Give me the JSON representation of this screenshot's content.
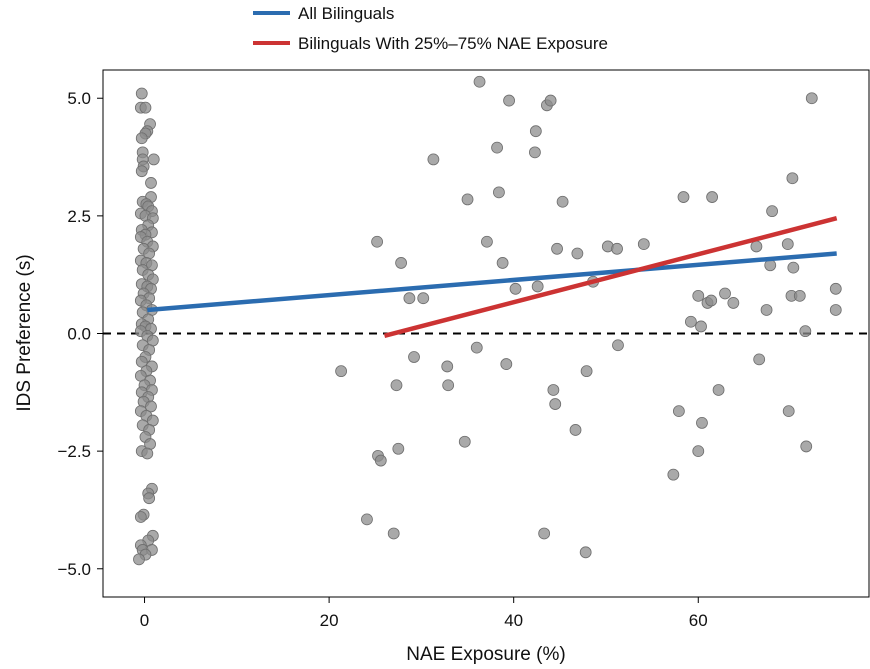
{
  "chart_data": {
    "type": "scatter",
    "xlabel": "NAE Exposure (%)",
    "ylabel": "IDS Preference (s)",
    "xlim": [
      -4.5,
      78.5
    ],
    "ylim": [
      -5.6,
      5.6
    ],
    "xticks": [
      0,
      20,
      40,
      60
    ],
    "xtick_labels": [
      "0",
      "20",
      "40",
      "60"
    ],
    "yticks": [
      -5.0,
      -2.5,
      0.0,
      2.5,
      5.0
    ],
    "ytick_labels": [
      "−5.0",
      "−2.5",
      "0.0",
      "2.5",
      "5.0"
    ],
    "reference_line": {
      "y": 0,
      "style": "dashed",
      "color": "#000000"
    },
    "legend": {
      "position": "top-center"
    },
    "point_color": "#8c8c8c",
    "series": [
      {
        "name": "All Bilinguals",
        "type": "line",
        "color": "#2b6cb0",
        "points": [
          [
            0.3,
            0.5
          ],
          [
            75,
            1.7
          ]
        ]
      },
      {
        "name": "Bilinguals With 25%–75% NAE Exposure",
        "type": "line",
        "color": "#cc3333",
        "points": [
          [
            26,
            -0.05
          ],
          [
            75,
            2.45
          ]
        ]
      }
    ],
    "points": [
      [
        -0.3,
        5.1
      ],
      [
        -0.4,
        4.8
      ],
      [
        0.1,
        4.8
      ],
      [
        0.6,
        4.45
      ],
      [
        0.3,
        4.3
      ],
      [
        0.1,
        4.25
      ],
      [
        -0.3,
        4.15
      ],
      [
        -0.2,
        3.85
      ],
      [
        1.0,
        3.7
      ],
      [
        -0.2,
        3.7
      ],
      [
        -0.1,
        3.55
      ],
      [
        -0.3,
        3.45
      ],
      [
        0.7,
        3.2
      ],
      [
        0.7,
        2.9
      ],
      [
        -0.2,
        2.8
      ],
      [
        0.2,
        2.75
      ],
      [
        0.4,
        2.7
      ],
      [
        0.8,
        2.6
      ],
      [
        -0.4,
        2.55
      ],
      [
        0.1,
        2.5
      ],
      [
        0.9,
        2.45
      ],
      [
        0.4,
        2.3
      ],
      [
        -0.3,
        2.2
      ],
      [
        0.8,
        2.15
      ],
      [
        0.1,
        2.1
      ],
      [
        -0.4,
        2.05
      ],
      [
        0.3,
        1.95
      ],
      [
        0.9,
        1.85
      ],
      [
        -0.1,
        1.8
      ],
      [
        0.5,
        1.7
      ],
      [
        -0.4,
        1.55
      ],
      [
        0.2,
        1.5
      ],
      [
        0.8,
        1.45
      ],
      [
        -0.2,
        1.35
      ],
      [
        0.4,
        1.25
      ],
      [
        0.9,
        1.15
      ],
      [
        -0.3,
        1.05
      ],
      [
        0.3,
        1.0
      ],
      [
        0.7,
        0.95
      ],
      [
        -0.1,
        0.85
      ],
      [
        0.5,
        0.75
      ],
      [
        -0.4,
        0.7
      ],
      [
        0.2,
        0.6
      ],
      [
        0.8,
        0.5
      ],
      [
        -0.2,
        0.45
      ],
      [
        0.4,
        0.3
      ],
      [
        -0.3,
        0.2
      ],
      [
        0.1,
        0.15
      ],
      [
        0.7,
        0.1
      ],
      [
        -0.4,
        0.05
      ],
      [
        0.3,
        -0.05
      ],
      [
        0.9,
        -0.15
      ],
      [
        -0.2,
        -0.25
      ],
      [
        0.5,
        -0.35
      ],
      [
        0.1,
        -0.5
      ],
      [
        -0.3,
        -0.6
      ],
      [
        0.8,
        -0.7
      ],
      [
        0.2,
        -0.8
      ],
      [
        -0.4,
        -0.9
      ],
      [
        0.6,
        -1.0
      ],
      [
        0.0,
        -1.1
      ],
      [
        0.8,
        -1.2
      ],
      [
        -0.3,
        -1.25
      ],
      [
        0.4,
        -1.35
      ],
      [
        -0.1,
        -1.45
      ],
      [
        0.7,
        -1.55
      ],
      [
        -0.4,
        -1.65
      ],
      [
        0.2,
        -1.75
      ],
      [
        0.9,
        -1.85
      ],
      [
        -0.2,
        -1.95
      ],
      [
        0.5,
        -2.05
      ],
      [
        0.1,
        -2.2
      ],
      [
        0.6,
        -2.35
      ],
      [
        -0.3,
        -2.5
      ],
      [
        0.3,
        -2.55
      ],
      [
        0.8,
        -3.3
      ],
      [
        0.4,
        -3.4
      ],
      [
        0.5,
        -3.5
      ],
      [
        -0.1,
        -3.85
      ],
      [
        -0.4,
        -3.9
      ],
      [
        0.9,
        -4.3
      ],
      [
        0.4,
        -4.4
      ],
      [
        -0.4,
        -4.5
      ],
      [
        -0.2,
        -4.6
      ],
      [
        0.8,
        -4.6
      ],
      [
        0.1,
        -4.7
      ],
      [
        -0.6,
        -4.8
      ],
      [
        21.3,
        -0.8
      ],
      [
        24.1,
        -3.95
      ],
      [
        25.2,
        1.95
      ],
      [
        25.3,
        -2.6
      ],
      [
        25.6,
        -2.7
      ],
      [
        27.0,
        -4.25
      ],
      [
        27.3,
        -1.1
      ],
      [
        27.5,
        -2.45
      ],
      [
        27.8,
        1.5
      ],
      [
        28.7,
        0.75
      ],
      [
        29.2,
        -0.5
      ],
      [
        30.2,
        0.75
      ],
      [
        31.3,
        3.7
      ],
      [
        32.8,
        -0.7
      ],
      [
        32.9,
        -1.1
      ],
      [
        34.7,
        -2.3
      ],
      [
        35.0,
        2.85
      ],
      [
        36.0,
        -0.3
      ],
      [
        36.3,
        5.35
      ],
      [
        37.1,
        1.95
      ],
      [
        38.2,
        3.95
      ],
      [
        38.4,
        3.0
      ],
      [
        38.8,
        1.5
      ],
      [
        39.2,
        -0.65
      ],
      [
        39.5,
        4.95
      ],
      [
        40.2,
        0.95
      ],
      [
        42.3,
        3.85
      ],
      [
        42.4,
        4.3
      ],
      [
        42.6,
        1.0
      ],
      [
        43.3,
        -4.25
      ],
      [
        43.6,
        4.85
      ],
      [
        44.0,
        4.95
      ],
      [
        44.3,
        -1.2
      ],
      [
        44.5,
        -1.5
      ],
      [
        44.7,
        1.8
      ],
      [
        45.3,
        2.8
      ],
      [
        46.7,
        -2.05
      ],
      [
        46.9,
        1.7
      ],
      [
        47.8,
        -4.65
      ],
      [
        47.9,
        -0.8
      ],
      [
        48.6,
        1.1
      ],
      [
        50.2,
        1.85
      ],
      [
        51.2,
        1.8
      ],
      [
        51.3,
        -0.25
      ],
      [
        54.1,
        1.9
      ],
      [
        57.3,
        -3.0
      ],
      [
        57.9,
        -1.65
      ],
      [
        58.4,
        2.9
      ],
      [
        59.2,
        0.25
      ],
      [
        60.0,
        -2.5
      ],
      [
        60.0,
        0.8
      ],
      [
        60.3,
        0.15
      ],
      [
        60.4,
        -1.9
      ],
      [
        61.0,
        0.65
      ],
      [
        61.4,
        0.7
      ],
      [
        61.5,
        2.9
      ],
      [
        62.2,
        -1.2
      ],
      [
        62.9,
        0.85
      ],
      [
        63.8,
        0.65
      ],
      [
        66.3,
        1.85
      ],
      [
        66.6,
        -0.55
      ],
      [
        67.4,
        0.5
      ],
      [
        67.8,
        1.45
      ],
      [
        68.0,
        2.6
      ],
      [
        69.7,
        1.9
      ],
      [
        69.8,
        -1.65
      ],
      [
        70.1,
        0.8
      ],
      [
        70.2,
        3.3
      ],
      [
        70.3,
        1.4
      ],
      [
        71.0,
        0.8
      ],
      [
        71.6,
        0.05
      ],
      [
        71.7,
        -2.4
      ],
      [
        72.3,
        5.0
      ],
      [
        74.9,
        0.95
      ],
      [
        74.9,
        0.5
      ]
    ]
  }
}
